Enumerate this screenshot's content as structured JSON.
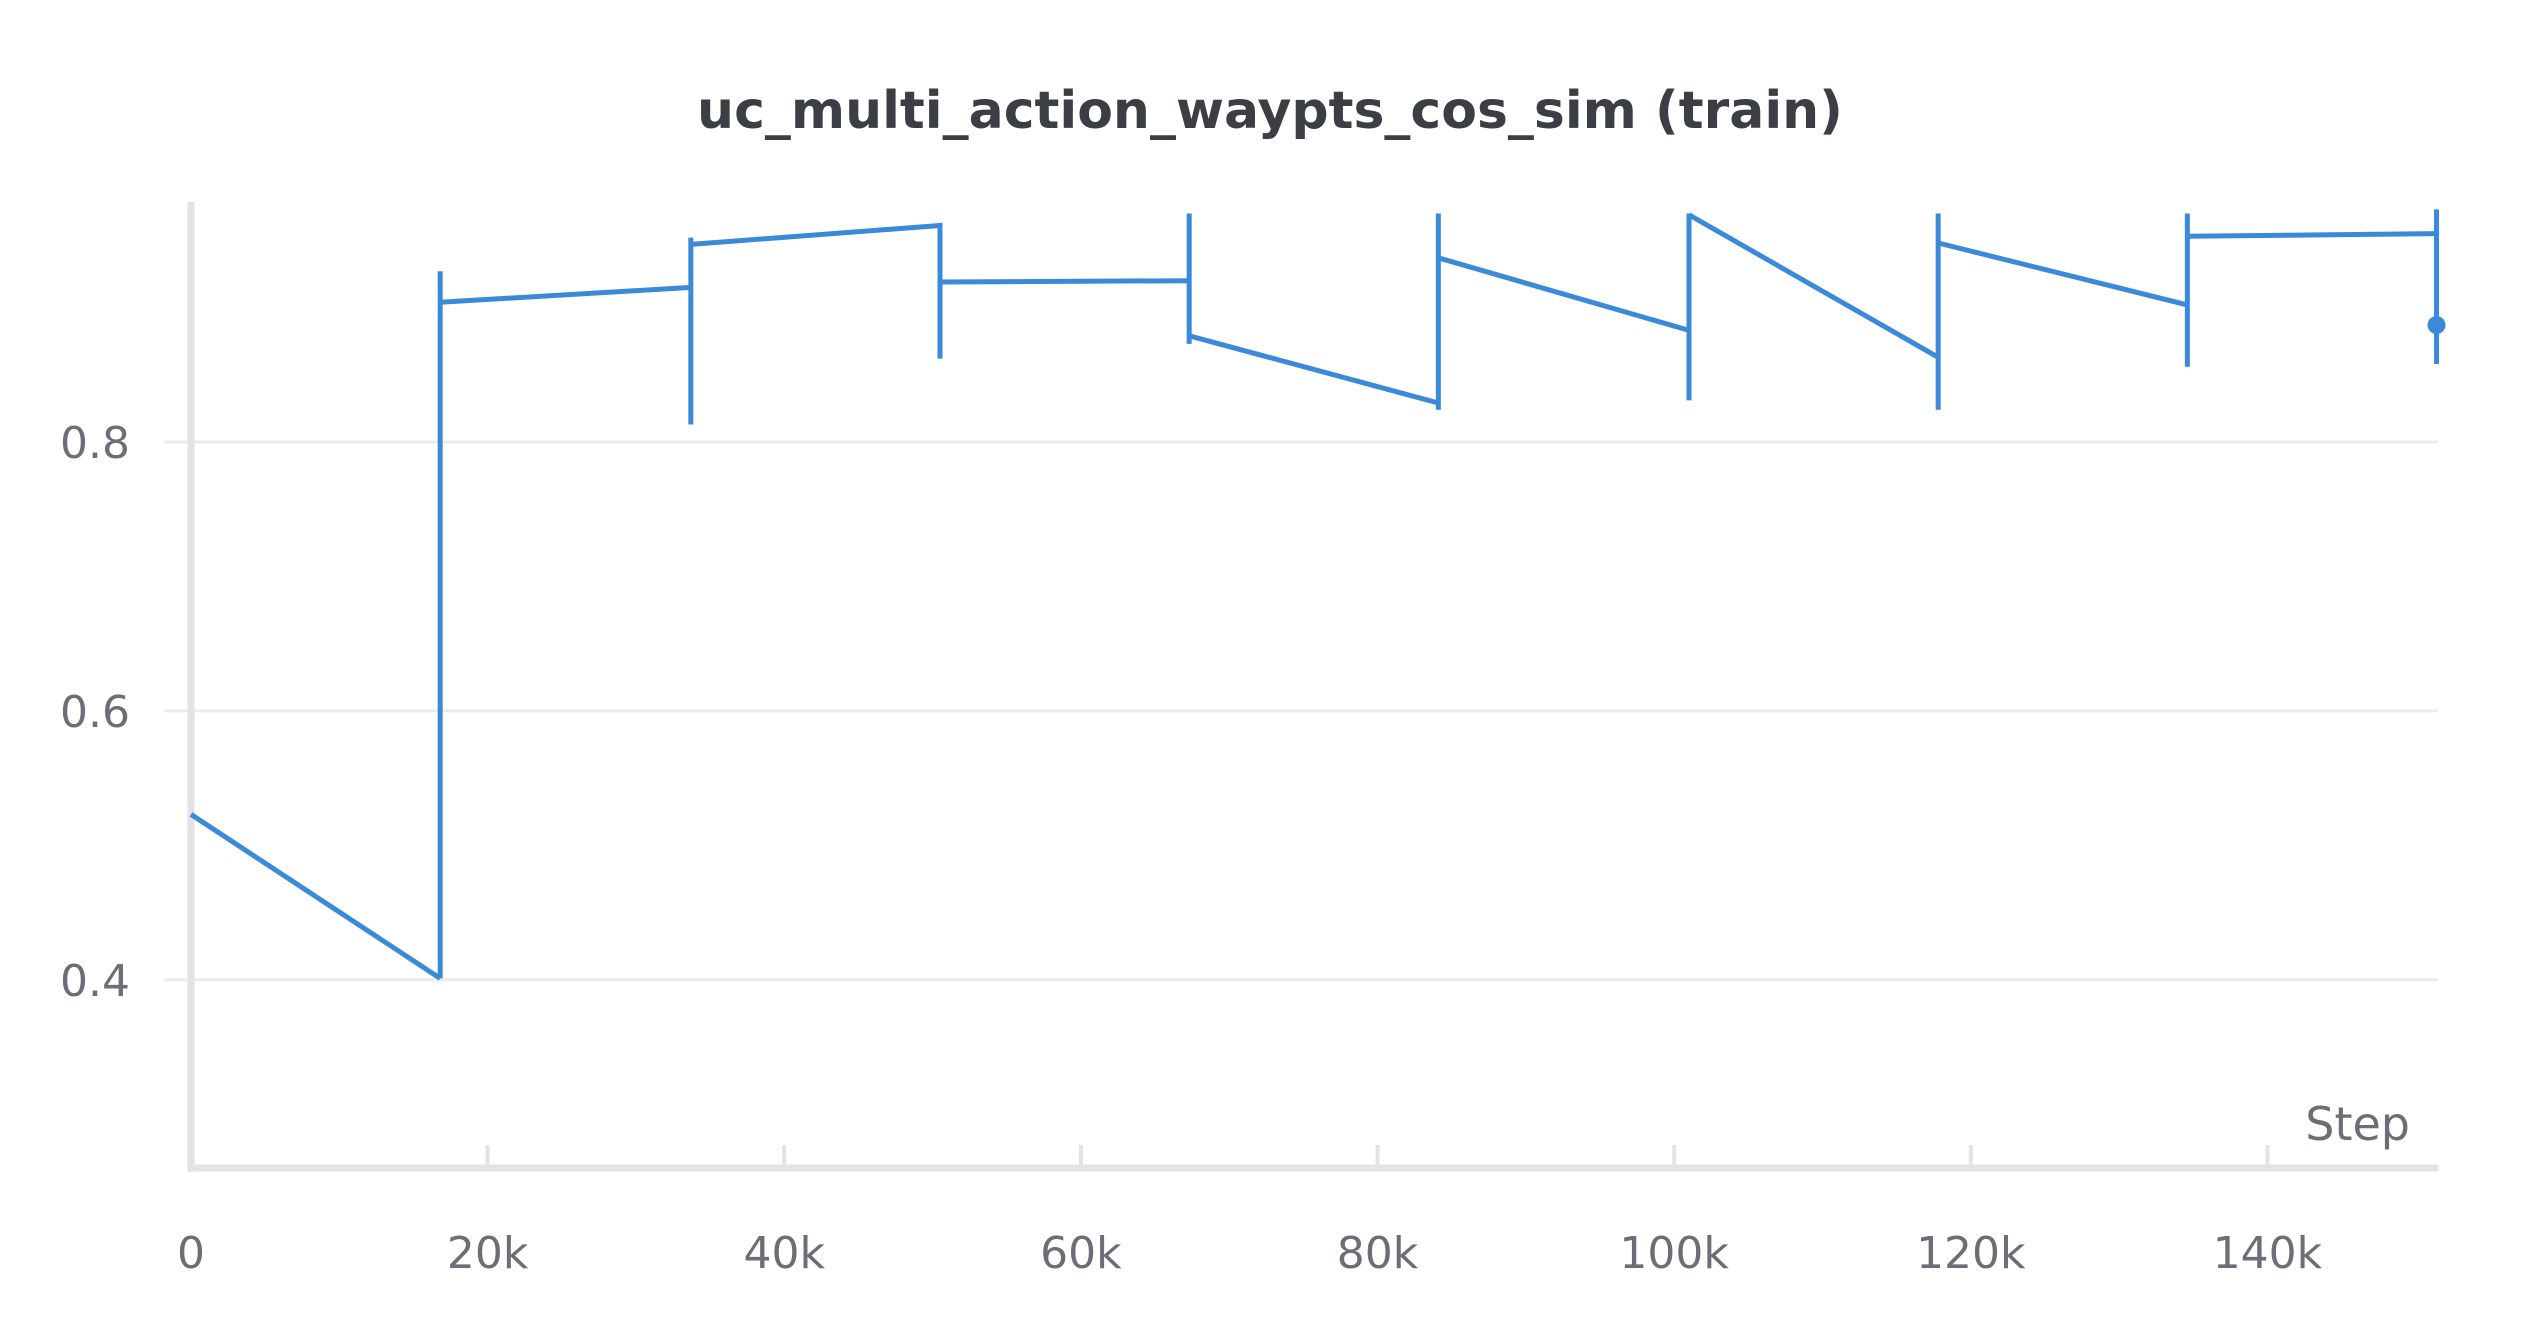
{
  "chart_data": {
    "type": "line",
    "title": "uc_multi_action_waypts_cos_sim (train)",
    "xlabel": "Step",
    "ylabel": "",
    "xlim": [
      0,
      151500
    ],
    "ylim": [
      0.26,
      0.98
    ],
    "x_ticks": [
      {
        "value": 0,
        "label": "0"
      },
      {
        "value": 20000,
        "label": "20k"
      },
      {
        "value": 40000,
        "label": "40k"
      },
      {
        "value": 60000,
        "label": "60k"
      },
      {
        "value": 80000,
        "label": "80k"
      },
      {
        "value": 100000,
        "label": "100k"
      },
      {
        "value": 120000,
        "label": "120k"
      },
      {
        "value": 140000,
        "label": "140k"
      }
    ],
    "y_ticks": [
      {
        "value": 0.4,
        "label": "0.4"
      },
      {
        "value": 0.6,
        "label": "0.6"
      },
      {
        "value": 0.8,
        "label": "0.8"
      }
    ],
    "grid": true,
    "legend": "none",
    "series_color": "#3a8ad9",
    "series": [
      {
        "segments": [
          {
            "x": [
              0,
              16800
            ],
            "y": [
              0.523,
              0.401
            ]
          },
          {
            "x": [
              16800,
              33700
            ],
            "y": [
              0.904,
              0.915
            ]
          },
          {
            "x": [
              33700,
              50500
            ],
            "y": [
              0.947,
              0.961
            ]
          },
          {
            "x": [
              50500,
              67300
            ],
            "y": [
              0.919,
              0.92
            ]
          },
          {
            "x": [
              67300,
              84100
            ],
            "y": [
              0.879,
              0.829
            ]
          },
          {
            "x": [
              84100,
              101000
            ],
            "y": [
              0.937,
              0.883
            ]
          },
          {
            "x": [
              101000,
              117800
            ],
            "y": [
              0.969,
              0.863
            ]
          },
          {
            "x": [
              117800,
              134600
            ],
            "y": [
              0.948,
              0.902
            ]
          },
          {
            "x": [
              134600,
              151400
            ],
            "y": [
              0.953,
              0.955
            ]
          }
        ],
        "range_bars": [
          {
            "x": 16800,
            "low": 0.401,
            "high": 0.927
          },
          {
            "x": 33700,
            "low": 0.813,
            "high": 0.952
          },
          {
            "x": 50500,
            "low": 0.862,
            "high": 0.963
          },
          {
            "x": 67300,
            "low": 0.873,
            "high": 0.97
          },
          {
            "x": 84100,
            "low": 0.824,
            "high": 0.97
          },
          {
            "x": 101000,
            "low": 0.831,
            "high": 0.97
          },
          {
            "x": 117800,
            "low": 0.824,
            "high": 0.97
          },
          {
            "x": 134600,
            "low": 0.856,
            "high": 0.97
          },
          {
            "x": 151400,
            "low": 0.858,
            "high": 0.973
          }
        ],
        "last_point": {
          "x": 151400,
          "y": 0.887
        }
      }
    ]
  }
}
